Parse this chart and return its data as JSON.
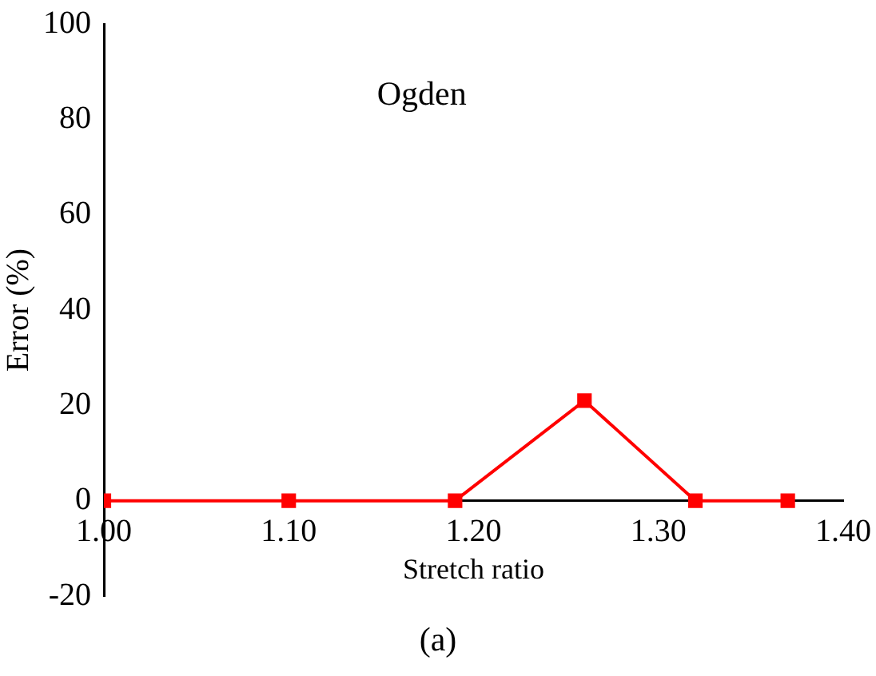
{
  "chart_data": {
    "type": "line",
    "title": "Ogden",
    "xlabel": "Stretch ratio",
    "ylabel": "Error (%)",
    "annotations": [
      "(a)"
    ],
    "x": [
      1.0,
      1.1,
      1.19,
      1.26,
      1.32,
      1.37
    ],
    "series": [
      {
        "color": "#ff0000",
        "values": [
          0,
          0,
          0,
          21,
          0,
          0
        ]
      }
    ],
    "xlim": [
      1.0,
      1.4
    ],
    "xticks": [
      {
        "value": 1.0,
        "label": "1.00"
      },
      {
        "value": 1.1,
        "label": "1.10"
      },
      {
        "value": 1.2,
        "label": "1.20"
      },
      {
        "value": 1.3,
        "label": "1.30"
      },
      {
        "value": 1.4,
        "label": "1.40"
      }
    ],
    "ylim": [
      -20,
      100
    ],
    "yticks": [
      -20,
      0,
      20,
      40,
      60,
      80,
      100
    ],
    "grid": false,
    "legend": false,
    "marker": "square",
    "line_style": "solid"
  }
}
